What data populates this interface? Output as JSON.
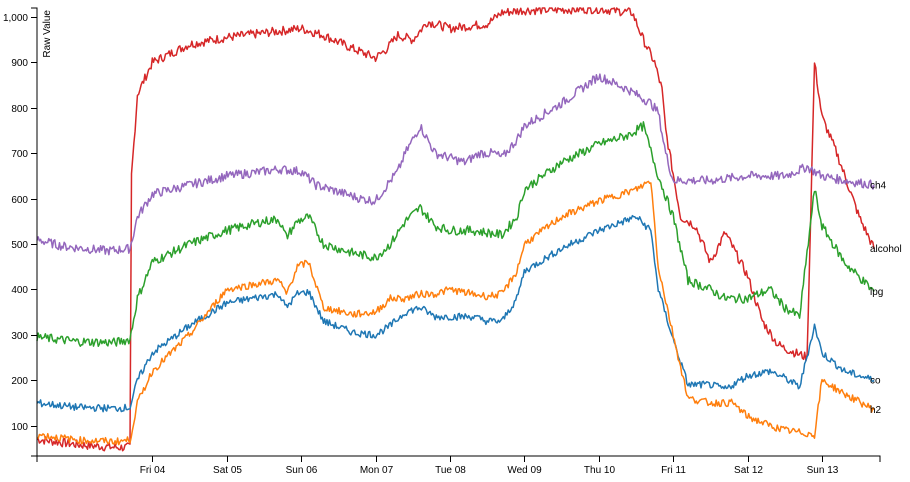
{
  "chart_data": {
    "type": "line",
    "title": "",
    "xlabel": "",
    "ylabel": "Raw Value",
    "ylim": [
      33,
      1020
    ],
    "xlim_days": [
      -1.55,
      9.78
    ],
    "grid": false,
    "legend": "inline labels at right end of each series",
    "yticks": [
      100,
      200,
      300,
      400,
      500,
      600,
      700,
      800,
      900,
      1000
    ],
    "ytick_labels": [
      "100",
      "200",
      "300",
      "400",
      "500",
      "600",
      "700",
      "800",
      "900",
      "1,000"
    ],
    "xticks": [
      {
        "day": 0,
        "label": "Fri 04"
      },
      {
        "day": 1,
        "label": "Sat 05"
      },
      {
        "day": 2,
        "label": "Sun 06"
      },
      {
        "day": 3,
        "label": "Mon 07"
      },
      {
        "day": 4,
        "label": "Tue 08"
      },
      {
        "day": 5,
        "label": "Wed 09"
      },
      {
        "day": 6,
        "label": "Thu 10"
      },
      {
        "day": 7,
        "label": "Fri 11"
      },
      {
        "day": 8,
        "label": "Sat 12"
      },
      {
        "day": 9,
        "label": "Sun 13"
      }
    ],
    "series": [
      {
        "name": "alcohol",
        "color": "#d62728",
        "noise": 10,
        "points": [
          [
            -1.55,
            70
          ],
          [
            -1.0,
            58
          ],
          [
            -0.5,
            52
          ],
          [
            -0.3,
            52
          ],
          [
            -0.28,
            650
          ],
          [
            -0.2,
            830
          ],
          [
            0.0,
            900
          ],
          [
            0.5,
            940
          ],
          [
            1.0,
            955
          ],
          [
            1.5,
            965
          ],
          [
            2.0,
            975
          ],
          [
            2.3,
            960
          ],
          [
            2.7,
            930
          ],
          [
            3.0,
            910
          ],
          [
            3.15,
            930
          ],
          [
            3.3,
            960
          ],
          [
            3.5,
            950
          ],
          [
            3.7,
            990
          ],
          [
            4.0,
            975
          ],
          [
            4.5,
            985
          ],
          [
            4.7,
            1010
          ],
          [
            5.0,
            1015
          ],
          [
            6.0,
            1018
          ],
          [
            6.45,
            1010
          ],
          [
            6.6,
            950
          ],
          [
            6.75,
            900
          ],
          [
            6.85,
            840
          ],
          [
            6.9,
            750
          ],
          [
            7.1,
            560
          ],
          [
            7.3,
            540
          ],
          [
            7.5,
            460
          ],
          [
            7.7,
            525
          ],
          [
            8.0,
            430
          ],
          [
            8.2,
            330
          ],
          [
            8.4,
            280
          ],
          [
            8.5,
            270
          ],
          [
            8.8,
            250
          ],
          [
            8.9,
            900
          ],
          [
            9.0,
            780
          ],
          [
            9.2,
            700
          ],
          [
            9.5,
            560
          ],
          [
            9.7,
            490
          ]
        ]
      },
      {
        "name": "ch4",
        "color": "#9467bd",
        "noise": 10,
        "points": [
          [
            -1.55,
            510
          ],
          [
            -1.2,
            495
          ],
          [
            -0.9,
            490
          ],
          [
            -0.6,
            485
          ],
          [
            -0.3,
            490
          ],
          [
            -0.2,
            560
          ],
          [
            0.0,
            610
          ],
          [
            0.5,
            630
          ],
          [
            1.0,
            650
          ],
          [
            1.5,
            660
          ],
          [
            1.7,
            665
          ],
          [
            2.0,
            660
          ],
          [
            2.2,
            630
          ],
          [
            2.6,
            610
          ],
          [
            2.8,
            600
          ],
          [
            3.0,
            595
          ],
          [
            3.2,
            640
          ],
          [
            3.3,
            660
          ],
          [
            3.4,
            700
          ],
          [
            3.6,
            760
          ],
          [
            3.8,
            700
          ],
          [
            4.0,
            690
          ],
          [
            4.2,
            680
          ],
          [
            4.4,
            700
          ],
          [
            4.6,
            700
          ],
          [
            4.7,
            690
          ],
          [
            4.9,
            730
          ],
          [
            5.0,
            760
          ],
          [
            5.5,
            810
          ],
          [
            6.0,
            870
          ],
          [
            6.4,
            840
          ],
          [
            6.7,
            810
          ],
          [
            6.8,
            790
          ],
          [
            6.9,
            700
          ],
          [
            7.0,
            640
          ],
          [
            7.5,
            640
          ],
          [
            8.0,
            650
          ],
          [
            8.5,
            650
          ],
          [
            8.8,
            670
          ],
          [
            9.0,
            650
          ],
          [
            9.3,
            640
          ],
          [
            9.7,
            630
          ]
        ]
      },
      {
        "name": "lpg",
        "color": "#2ca02c",
        "noise": 10,
        "points": [
          [
            -1.55,
            295
          ],
          [
            -1.0,
            285
          ],
          [
            -0.5,
            283
          ],
          [
            -0.3,
            290
          ],
          [
            -0.2,
            380
          ],
          [
            0.0,
            460
          ],
          [
            0.5,
            500
          ],
          [
            1.0,
            530
          ],
          [
            1.5,
            550
          ],
          [
            1.7,
            555
          ],
          [
            1.8,
            515
          ],
          [
            1.95,
            550
          ],
          [
            2.1,
            560
          ],
          [
            2.3,
            500
          ],
          [
            2.7,
            480
          ],
          [
            3.0,
            470
          ],
          [
            3.2,
            500
          ],
          [
            3.4,
            550
          ],
          [
            3.6,
            580
          ],
          [
            3.8,
            540
          ],
          [
            4.0,
            530
          ],
          [
            4.3,
            530
          ],
          [
            4.5,
            525
          ],
          [
            4.7,
            520
          ],
          [
            4.9,
            560
          ],
          [
            5.0,
            620
          ],
          [
            5.5,
            680
          ],
          [
            6.0,
            720
          ],
          [
            6.4,
            740
          ],
          [
            6.6,
            760
          ],
          [
            6.8,
            650
          ],
          [
            7.0,
            560
          ],
          [
            7.2,
            420
          ],
          [
            7.5,
            400
          ],
          [
            7.7,
            380
          ],
          [
            8.0,
            380
          ],
          [
            8.3,
            400
          ],
          [
            8.5,
            360
          ],
          [
            8.7,
            340
          ],
          [
            8.9,
            620
          ],
          [
            9.0,
            540
          ],
          [
            9.3,
            460
          ],
          [
            9.7,
            395
          ]
        ]
      },
      {
        "name": "co",
        "color": "#1f77b4",
        "noise": 8,
        "points": [
          [
            -1.55,
            150
          ],
          [
            -1.0,
            140
          ],
          [
            -0.5,
            138
          ],
          [
            -0.3,
            140
          ],
          [
            -0.2,
            200
          ],
          [
            0.0,
            260
          ],
          [
            0.5,
            320
          ],
          [
            1.0,
            370
          ],
          [
            1.5,
            385
          ],
          [
            1.7,
            390
          ],
          [
            1.8,
            360
          ],
          [
            1.95,
            390
          ],
          [
            2.1,
            395
          ],
          [
            2.3,
            330
          ],
          [
            2.7,
            305
          ],
          [
            3.0,
            300
          ],
          [
            3.2,
            320
          ],
          [
            3.4,
            350
          ],
          [
            3.6,
            360
          ],
          [
            3.8,
            340
          ],
          [
            4.0,
            340
          ],
          [
            4.3,
            340
          ],
          [
            4.5,
            330
          ],
          [
            4.7,
            330
          ],
          [
            4.9,
            380
          ],
          [
            5.0,
            440
          ],
          [
            5.5,
            490
          ],
          [
            6.0,
            530
          ],
          [
            6.5,
            560
          ],
          [
            6.7,
            530
          ],
          [
            6.8,
            400
          ],
          [
            7.0,
            290
          ],
          [
            7.2,
            190
          ],
          [
            7.5,
            190
          ],
          [
            7.7,
            180
          ],
          [
            8.0,
            210
          ],
          [
            8.3,
            220
          ],
          [
            8.5,
            205
          ],
          [
            8.7,
            185
          ],
          [
            8.9,
            320
          ],
          [
            9.0,
            260
          ],
          [
            9.3,
            220
          ],
          [
            9.7,
            200
          ]
        ]
      },
      {
        "name": "h2",
        "color": "#ff7f0e",
        "noise": 8,
        "points": [
          [
            -1.55,
            80
          ],
          [
            -1.0,
            68
          ],
          [
            -0.5,
            65
          ],
          [
            -0.3,
            68
          ],
          [
            -0.2,
            150
          ],
          [
            0.0,
            220
          ],
          [
            0.5,
            300
          ],
          [
            1.0,
            400
          ],
          [
            1.5,
            415
          ],
          [
            1.7,
            420
          ],
          [
            1.8,
            390
          ],
          [
            1.95,
            450
          ],
          [
            2.1,
            460
          ],
          [
            2.3,
            360
          ],
          [
            2.7,
            345
          ],
          [
            3.0,
            350
          ],
          [
            3.2,
            380
          ],
          [
            3.4,
            380
          ],
          [
            3.6,
            390
          ],
          [
            3.8,
            390
          ],
          [
            4.0,
            400
          ],
          [
            4.3,
            390
          ],
          [
            4.5,
            385
          ],
          [
            4.7,
            390
          ],
          [
            4.9,
            440
          ],
          [
            5.0,
            500
          ],
          [
            5.5,
            560
          ],
          [
            6.0,
            595
          ],
          [
            6.5,
            620
          ],
          [
            6.7,
            640
          ],
          [
            6.8,
            450
          ],
          [
            7.0,
            300
          ],
          [
            7.2,
            160
          ],
          [
            7.5,
            150
          ],
          [
            7.8,
            150
          ],
          [
            8.0,
            120
          ],
          [
            8.3,
            100
          ],
          [
            8.5,
            90
          ],
          [
            8.9,
            80
          ],
          [
            9.0,
            200
          ],
          [
            9.3,
            170
          ],
          [
            9.7,
            135
          ]
        ]
      }
    ]
  }
}
